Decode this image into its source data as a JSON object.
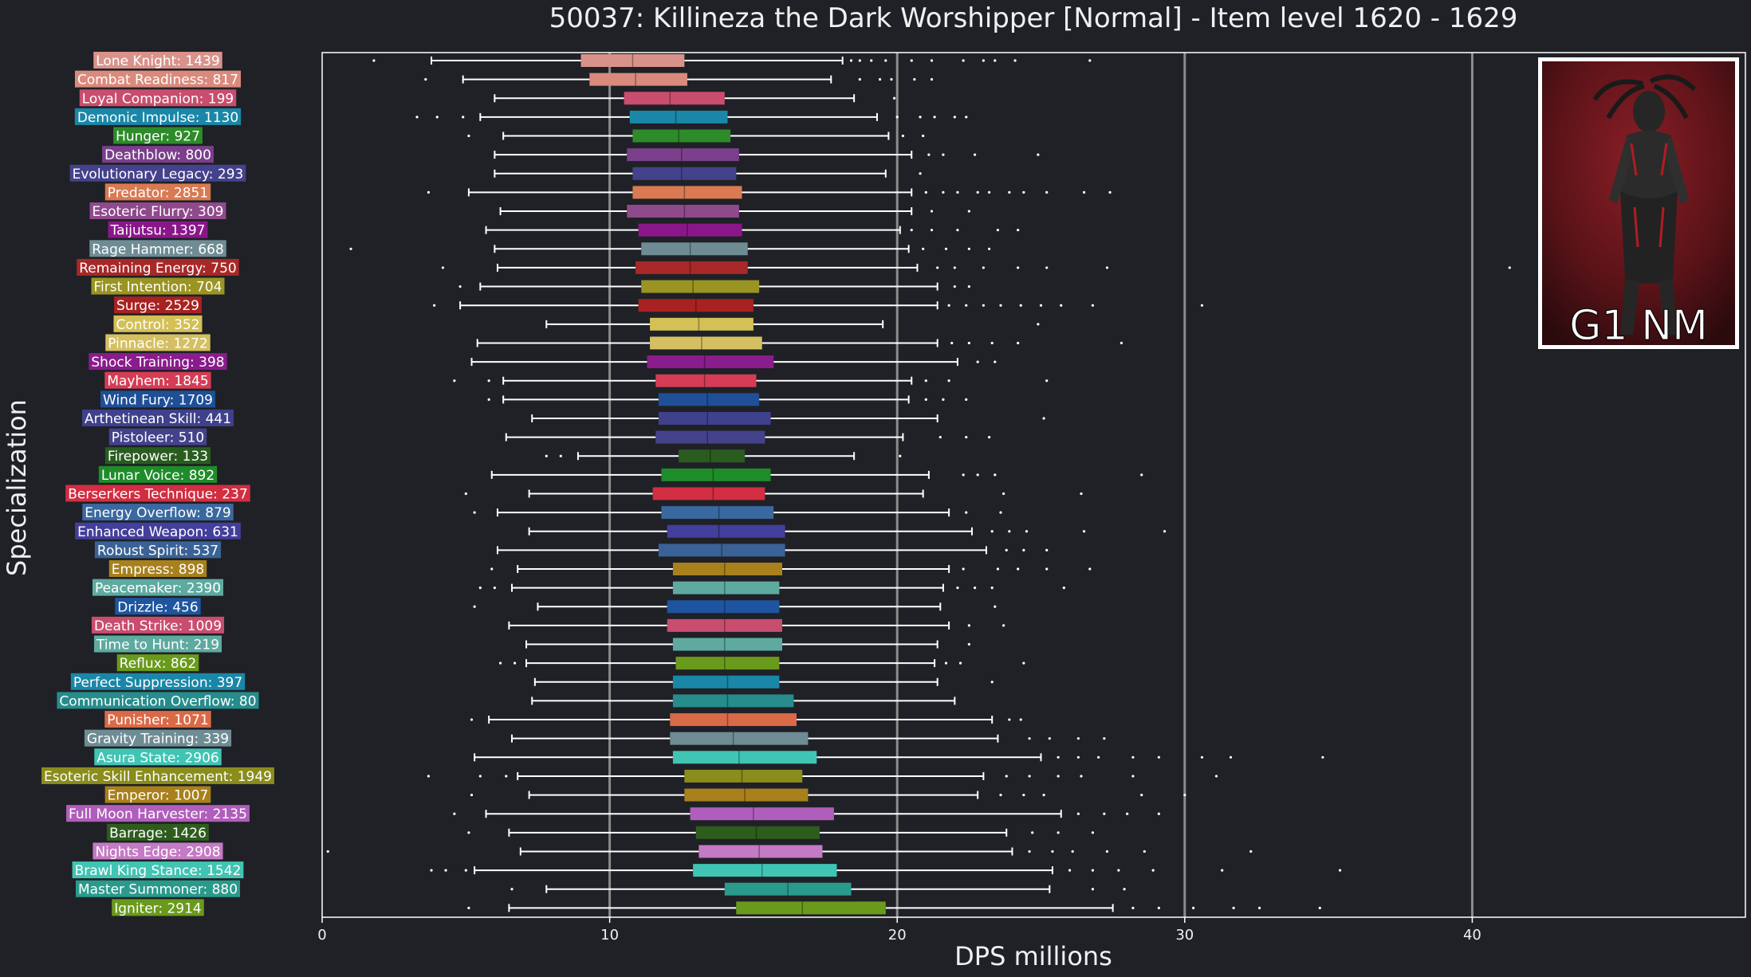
{
  "colors": {
    "background": "#1f2126",
    "text": "#f0f0f0",
    "whisker": "#ffffff",
    "gridline": "#8c8c8c",
    "axis": "#ffffff",
    "badge_border": "#ffffff"
  },
  "badge": {
    "text": "G1 NM"
  },
  "chart_data": {
    "type": "box",
    "title": "50037: Killineza the Dark Worshipper [Normal] - Item level 1620 - 1629",
    "xlabel": "DPS millions",
    "ylabel": "Specialization",
    "xlim": [
      0,
      49.5
    ],
    "xticks": [
      0,
      10,
      20,
      30,
      40
    ],
    "xtick_labels": [
      "0",
      "10",
      "20",
      "30",
      "40"
    ],
    "grid": {
      "x": [
        10,
        20,
        30,
        40
      ]
    },
    "series": [
      {
        "label": "Lone Knight: 1439",
        "color": "#d9928a",
        "whisker_low": 3.8,
        "q1": 9.0,
        "median": 10.8,
        "q3": 12.6,
        "whisker_high": 18.1,
        "outliers": [
          1.8,
          18.4,
          18.7,
          19.1,
          19.6,
          20.5,
          21.2,
          22.3,
          23.0,
          23.4,
          24.1,
          26.7
        ]
      },
      {
        "label": "Combat Readiness: 817",
        "color": "#d98a7c",
        "whisker_low": 4.9,
        "q1": 9.3,
        "median": 10.9,
        "q3": 12.7,
        "whisker_high": 17.7,
        "outliers": [
          3.6,
          18.7,
          19.4,
          19.8,
          20.6,
          21.2
        ]
      },
      {
        "label": "Loyal Companion: 199",
        "color": "#c94d6e",
        "whisker_low": 6.0,
        "q1": 10.5,
        "median": 12.1,
        "q3": 14.0,
        "whisker_high": 18.5,
        "outliers": [
          19.9
        ]
      },
      {
        "label": "Demonic Impulse: 1130",
        "color": "#1a87a8",
        "whisker_low": 5.5,
        "q1": 10.7,
        "median": 12.3,
        "q3": 14.1,
        "whisker_high": 19.3,
        "outliers": [
          3.3,
          4.0,
          4.9,
          20.0,
          20.8,
          21.3,
          22.0,
          22.4
        ]
      },
      {
        "label": "Hunger: 927",
        "color": "#2e8b2a",
        "whisker_low": 6.3,
        "q1": 10.8,
        "median": 12.4,
        "q3": 14.2,
        "whisker_high": 19.7,
        "outliers": [
          5.1,
          20.2,
          20.9
        ]
      },
      {
        "label": "Deathblow: 800",
        "color": "#7b3f8c",
        "whisker_low": 6.0,
        "q1": 10.6,
        "median": 12.5,
        "q3": 14.5,
        "whisker_high": 20.5,
        "outliers": [
          21.1,
          21.6,
          22.7,
          24.9
        ]
      },
      {
        "label": "Evolutionary Legacy: 293",
        "color": "#45428c",
        "whisker_low": 6.0,
        "q1": 10.8,
        "median": 12.5,
        "q3": 14.4,
        "whisker_high": 19.6,
        "outliers": [
          20.8
        ]
      },
      {
        "label": "Predator: 2851",
        "color": "#d97a52",
        "whisker_low": 5.1,
        "q1": 10.8,
        "median": 12.6,
        "q3": 14.6,
        "whisker_high": 20.5,
        "outliers": [
          3.7,
          21.0,
          21.6,
          22.1,
          22.8,
          23.2,
          23.9,
          24.4,
          25.2,
          26.5,
          27.4
        ]
      },
      {
        "label": "Esoteric Flurry: 309",
        "color": "#8f4a8c",
        "whisker_low": 6.2,
        "q1": 10.6,
        "median": 12.6,
        "q3": 14.5,
        "whisker_high": 20.5,
        "outliers": [
          21.2,
          22.5
        ]
      },
      {
        "label": "Taijutsu: 1397",
        "color": "#8a178a",
        "whisker_low": 5.7,
        "q1": 11.0,
        "median": 12.7,
        "q3": 14.6,
        "whisker_high": 20.1,
        "outliers": [
          20.5,
          21.2,
          22.1,
          23.5,
          24.2
        ]
      },
      {
        "label": "Rage Hammer: 668",
        "color": "#6f8c94",
        "whisker_low": 6.0,
        "q1": 11.1,
        "median": 12.8,
        "q3": 14.8,
        "whisker_high": 20.4,
        "outliers": [
          1.0,
          20.9,
          21.7,
          22.5,
          23.2
        ]
      },
      {
        "label": "Remaining Energy: 750",
        "color": "#a82828",
        "whisker_low": 6.1,
        "q1": 10.9,
        "median": 12.8,
        "q3": 14.8,
        "whisker_high": 20.7,
        "outliers": [
          4.2,
          21.4,
          22.0,
          23.0,
          24.2,
          25.2,
          27.3,
          41.3
        ]
      },
      {
        "label": "First Intention: 704",
        "color": "#9a9422",
        "whisker_low": 5.5,
        "q1": 11.1,
        "median": 12.9,
        "q3": 15.2,
        "whisker_high": 21.4,
        "outliers": [
          4.8,
          22.0,
          22.5
        ]
      },
      {
        "label": "Surge: 2529",
        "color": "#a82222",
        "whisker_low": 4.8,
        "q1": 11.0,
        "median": 13.0,
        "q3": 15.0,
        "whisker_high": 21.4,
        "outliers": [
          3.9,
          21.8,
          22.4,
          23.0,
          23.6,
          24.3,
          25.0,
          25.7,
          26.8,
          30.6
        ]
      },
      {
        "label": "Control: 352",
        "color": "#d4c055",
        "whisker_low": 7.8,
        "q1": 11.4,
        "median": 13.1,
        "q3": 15.0,
        "whisker_high": 19.5,
        "outliers": [
          24.9
        ]
      },
      {
        "label": "Pinnacle: 1272",
        "color": "#d4c062",
        "whisker_low": 5.4,
        "q1": 11.4,
        "median": 13.2,
        "q3": 15.3,
        "whisker_high": 21.4,
        "outliers": [
          21.9,
          22.5,
          23.3,
          24.2,
          27.8
        ]
      },
      {
        "label": "Shock Training: 398",
        "color": "#8a1c8c",
        "whisker_low": 5.2,
        "q1": 11.3,
        "median": 13.3,
        "q3": 15.7,
        "whisker_high": 22.1,
        "outliers": [
          22.8,
          23.4
        ]
      },
      {
        "label": "Mayhem: 1845",
        "color": "#d63c55",
        "whisker_low": 6.3,
        "q1": 11.6,
        "median": 13.3,
        "q3": 15.1,
        "whisker_high": 20.5,
        "outliers": [
          4.6,
          5.8,
          21.0,
          21.8,
          25.2
        ]
      },
      {
        "label": "Wind Fury: 1709",
        "color": "#1f4f96",
        "whisker_low": 6.3,
        "q1": 11.7,
        "median": 13.4,
        "q3": 15.2,
        "whisker_high": 20.4,
        "outliers": [
          5.8,
          21.0,
          21.6,
          22.4
        ]
      },
      {
        "label": "Arthetinean Skill: 441",
        "color": "#3f418c",
        "whisker_low": 7.3,
        "q1": 11.7,
        "median": 13.4,
        "q3": 15.6,
        "whisker_high": 21.4,
        "outliers": [
          25.1
        ]
      },
      {
        "label": "Pistoleer: 510",
        "color": "#45428c",
        "whisker_low": 6.4,
        "q1": 11.6,
        "median": 13.4,
        "q3": 15.4,
        "whisker_high": 20.2,
        "outliers": [
          21.5,
          22.4,
          23.2
        ]
      },
      {
        "label": "Firepower: 133",
        "color": "#2a5c20",
        "whisker_low": 8.9,
        "q1": 12.4,
        "median": 13.5,
        "q3": 14.7,
        "whisker_high": 18.5,
        "outliers": [
          7.8,
          8.3,
          20.1
        ]
      },
      {
        "label": "Lunar Voice: 892",
        "color": "#1f8c2a",
        "whisker_low": 5.9,
        "q1": 11.8,
        "median": 13.6,
        "q3": 15.6,
        "whisker_high": 21.1,
        "outliers": [
          22.3,
          22.8,
          23.4,
          28.5
        ]
      },
      {
        "label": "Berserkers Technique: 237",
        "color": "#d22e42",
        "whisker_low": 7.2,
        "q1": 11.5,
        "median": 13.6,
        "q3": 15.4,
        "whisker_high": 20.9,
        "outliers": [
          5.0,
          23.7,
          26.4
        ]
      },
      {
        "label": "Energy Overflow: 879",
        "color": "#3a68a0",
        "whisker_low": 6.1,
        "q1": 11.8,
        "median": 13.8,
        "q3": 15.7,
        "whisker_high": 21.8,
        "outliers": [
          5.3,
          22.4,
          23.6
        ]
      },
      {
        "label": "Enhanced Weapon: 631",
        "color": "#433f9c",
        "whisker_low": 7.2,
        "q1": 12.0,
        "median": 13.8,
        "q3": 16.1,
        "whisker_high": 22.6,
        "outliers": [
          23.3,
          23.9,
          24.5,
          26.5,
          29.3
        ]
      },
      {
        "label": "Robust Spirit: 537",
        "color": "#3a6296",
        "whisker_low": 6.1,
        "q1": 11.7,
        "median": 13.9,
        "q3": 16.1,
        "whisker_high": 23.1,
        "outliers": [
          23.8,
          24.4,
          25.2
        ]
      },
      {
        "label": "Empress: 898",
        "color": "#a8801c",
        "whisker_low": 6.8,
        "q1": 12.2,
        "median": 14.0,
        "q3": 16.0,
        "whisker_high": 21.8,
        "outliers": [
          5.9,
          22.3,
          23.5,
          24.2,
          25.2,
          26.7
        ]
      },
      {
        "label": "Peacemaker: 2390",
        "color": "#5eaaa0",
        "whisker_low": 6.6,
        "q1": 12.2,
        "median": 14.0,
        "q3": 15.9,
        "whisker_high": 21.6,
        "outliers": [
          5.5,
          6.0,
          22.1,
          22.7,
          23.3,
          25.8
        ]
      },
      {
        "label": "Drizzle: 456",
        "color": "#1f55a0",
        "whisker_low": 7.5,
        "q1": 12.0,
        "median": 14.0,
        "q3": 15.9,
        "whisker_high": 21.5,
        "outliers": [
          5.3,
          23.4
        ]
      },
      {
        "label": "Death Strike: 1009",
        "color": "#c94d6e",
        "whisker_low": 6.5,
        "q1": 12.0,
        "median": 14.0,
        "q3": 16.0,
        "whisker_high": 21.8,
        "outliers": [
          22.5,
          23.7
        ]
      },
      {
        "label": "Time to Hunt: 219",
        "color": "#5eaaa0",
        "whisker_low": 7.1,
        "q1": 12.2,
        "median": 14.0,
        "q3": 16.0,
        "whisker_high": 21.4,
        "outliers": [
          22.5
        ]
      },
      {
        "label": "Reflux: 862",
        "color": "#6a9a1c",
        "whisker_low": 7.1,
        "q1": 12.3,
        "median": 14.0,
        "q3": 15.9,
        "whisker_high": 21.3,
        "outliers": [
          6.2,
          6.7,
          21.7,
          22.2,
          24.4
        ]
      },
      {
        "label": "Perfect Suppression: 397",
        "color": "#1a87a8",
        "whisker_low": 7.4,
        "q1": 12.2,
        "median": 14.1,
        "q3": 15.9,
        "whisker_high": 21.4,
        "outliers": [
          23.3
        ]
      },
      {
        "label": "Communication Overflow: 80",
        "color": "#268c8c",
        "whisker_low": 7.3,
        "q1": 12.2,
        "median": 14.1,
        "q3": 16.4,
        "whisker_high": 22.0,
        "outliers": []
      },
      {
        "label": "Punisher: 1071",
        "color": "#d96a48",
        "whisker_low": 5.8,
        "q1": 12.1,
        "median": 14.1,
        "q3": 16.5,
        "whisker_high": 23.3,
        "outliers": [
          5.2,
          23.9,
          24.3
        ]
      },
      {
        "label": "Gravity Training: 339",
        "color": "#6f8c94",
        "whisker_low": 6.6,
        "q1": 12.1,
        "median": 14.3,
        "q3": 16.9,
        "whisker_high": 23.5,
        "outliers": [
          24.6,
          25.3,
          26.3,
          27.2
        ]
      },
      {
        "label": "Asura State: 2906",
        "color": "#40c4b4",
        "whisker_low": 5.3,
        "q1": 12.2,
        "median": 14.5,
        "q3": 17.2,
        "whisker_high": 25.0,
        "outliers": [
          25.6,
          26.3,
          27.0,
          28.2,
          29.1,
          30.6,
          31.6,
          34.8
        ]
      },
      {
        "label": "Esoteric Skill Enhancement: 1949",
        "color": "#8a8c1c",
        "whisker_low": 6.8,
        "q1": 12.6,
        "median": 14.6,
        "q3": 16.7,
        "whisker_high": 23.0,
        "outliers": [
          3.7,
          5.5,
          6.4,
          23.8,
          24.6,
          25.6,
          26.4,
          28.2,
          31.1
        ]
      },
      {
        "label": "Emperor: 1007",
        "color": "#a8801c",
        "whisker_low": 7.2,
        "q1": 12.6,
        "median": 14.7,
        "q3": 16.9,
        "whisker_high": 22.8,
        "outliers": [
          5.2,
          23.6,
          24.4,
          25.1,
          28.5,
          30.0
        ]
      },
      {
        "label": "Full Moon Harvester: 2135",
        "color": "#b05ebb",
        "whisker_low": 5.7,
        "q1": 12.8,
        "median": 15.0,
        "q3": 17.8,
        "whisker_high": 25.7,
        "outliers": [
          4.6,
          26.3,
          27.2,
          28.0,
          29.1
        ]
      },
      {
        "label": "Barrage: 1426",
        "color": "#2e5c1c",
        "whisker_low": 6.5,
        "q1": 13.0,
        "median": 15.1,
        "q3": 17.3,
        "whisker_high": 23.8,
        "outliers": [
          5.1,
          24.7,
          25.6,
          26.8
        ]
      },
      {
        "label": "Nights Edge: 2908",
        "color": "#c47ac4",
        "whisker_low": 6.9,
        "q1": 13.1,
        "median": 15.2,
        "q3": 17.4,
        "whisker_high": 24.0,
        "outliers": [
          0.2,
          24.6,
          25.4,
          26.1,
          27.3,
          28.6,
          32.3
        ]
      },
      {
        "label": "Brawl King Stance: 1542",
        "color": "#40c4b4",
        "whisker_low": 5.3,
        "q1": 12.9,
        "median": 15.3,
        "q3": 17.9,
        "whisker_high": 25.4,
        "outliers": [
          3.8,
          4.3,
          5.0,
          26.0,
          26.8,
          27.7,
          28.9,
          31.3,
          35.4
        ]
      },
      {
        "label": "Master Summoner: 880",
        "color": "#2a9a8c",
        "whisker_low": 7.8,
        "q1": 14.0,
        "median": 16.2,
        "q3": 18.4,
        "whisker_high": 25.3,
        "outliers": [
          6.6,
          26.8,
          27.9
        ]
      },
      {
        "label": "Igniter: 2914",
        "color": "#6a9a1c",
        "whisker_low": 6.5,
        "q1": 14.4,
        "median": 16.7,
        "q3": 19.6,
        "whisker_high": 27.5,
        "outliers": [
          5.1,
          28.2,
          29.1,
          30.3,
          31.7,
          32.6,
          34.7
        ]
      }
    ]
  }
}
